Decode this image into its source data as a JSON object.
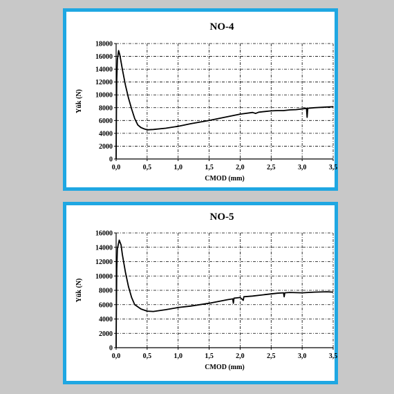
{
  "chart_data": [
    {
      "type": "line",
      "title": "NO-4",
      "xlabel": "CMOD (mm)",
      "ylabel": "Yük (N)",
      "xlim": [
        0,
        3.5
      ],
      "ylim": [
        0,
        18000
      ],
      "x_ticks": [
        "0,0",
        "0,5",
        "1,0",
        "1,5",
        "2,0",
        "2,5",
        "3,0",
        "3,5"
      ],
      "y_ticks": [
        "0",
        "2000",
        "4000",
        "6000",
        "8000",
        "10000",
        "12000",
        "14000",
        "16000",
        "18000"
      ],
      "grid": true,
      "series": [
        {
          "values": [
            [
              0,
              0
            ],
            [
              0.005,
              7000
            ],
            [
              0.01,
              12500
            ],
            [
              0.02,
              15500
            ],
            [
              0.04,
              16900
            ],
            [
              0.06,
              16200
            ],
            [
              0.1,
              14000
            ],
            [
              0.15,
              11500
            ],
            [
              0.2,
              9500
            ],
            [
              0.25,
              7800
            ],
            [
              0.3,
              6300
            ],
            [
              0.35,
              5300
            ],
            [
              0.4,
              4900
            ],
            [
              0.45,
              4700
            ],
            [
              0.5,
              4550
            ],
            [
              0.6,
              4600
            ],
            [
              0.8,
              4800
            ],
            [
              1.0,
              5100
            ],
            [
              1.2,
              5500
            ],
            [
              1.5,
              6000
            ],
            [
              1.8,
              6600
            ],
            [
              2.0,
              7000
            ],
            [
              2.2,
              7250
            ],
            [
              2.25,
              7100
            ],
            [
              2.3,
              7300
            ],
            [
              2.4,
              7400
            ],
            [
              2.5,
              7500
            ],
            [
              2.6,
              7550
            ],
            [
              2.7,
              7550
            ],
            [
              2.8,
              7650
            ],
            [
              2.9,
              7700
            ],
            [
              3.0,
              7800
            ],
            [
              3.07,
              7900
            ],
            [
              3.08,
              6500
            ],
            [
              3.09,
              7900
            ],
            [
              3.2,
              8000
            ],
            [
              3.3,
              8050
            ],
            [
              3.4,
              8100
            ],
            [
              3.5,
              8150
            ]
          ]
        }
      ]
    },
    {
      "type": "line",
      "title": "NO-5",
      "xlabel": "CMOD (mm)",
      "ylabel": "Yük (N)",
      "xlim": [
        0,
        3.5
      ],
      "ylim": [
        0,
        16000
      ],
      "x_ticks": [
        "0,0",
        "0,5",
        "1,0",
        "1,5",
        "2,0",
        "2,5",
        "3,0",
        "3,5"
      ],
      "y_ticks": [
        "0",
        "2000",
        "4000",
        "6000",
        "8000",
        "10000",
        "12000",
        "14000",
        "16000"
      ],
      "grid": true,
      "series": [
        {
          "values": [
            [
              0,
              0
            ],
            [
              0.005,
              6000
            ],
            [
              0.01,
              11000
            ],
            [
              0.02,
              13800
            ],
            [
              0.05,
              15000
            ],
            [
              0.08,
              14300
            ],
            [
              0.1,
              13000
            ],
            [
              0.15,
              10500
            ],
            [
              0.2,
              8500
            ],
            [
              0.25,
              7000
            ],
            [
              0.3,
              6000
            ],
            [
              0.4,
              5400
            ],
            [
              0.5,
              5100
            ],
            [
              0.6,
              5050
            ],
            [
              0.8,
              5300
            ],
            [
              1.0,
              5600
            ],
            [
              1.2,
              5800
            ],
            [
              1.5,
              6200
            ],
            [
              1.8,
              6700
            ],
            [
              1.88,
              6800
            ],
            [
              1.89,
              6200
            ],
            [
              1.9,
              6900
            ],
            [
              2.0,
              7000
            ],
            [
              2.05,
              6600
            ],
            [
              2.06,
              7100
            ],
            [
              2.2,
              7200
            ],
            [
              2.4,
              7400
            ],
            [
              2.6,
              7600
            ],
            [
              2.7,
              7650
            ],
            [
              2.71,
              7100
            ],
            [
              2.72,
              7650
            ],
            [
              2.8,
              7700
            ],
            [
              3.0,
              7650
            ],
            [
              3.2,
              7750
            ],
            [
              3.4,
              7800
            ],
            [
              3.5,
              7750
            ]
          ]
        }
      ]
    }
  ]
}
